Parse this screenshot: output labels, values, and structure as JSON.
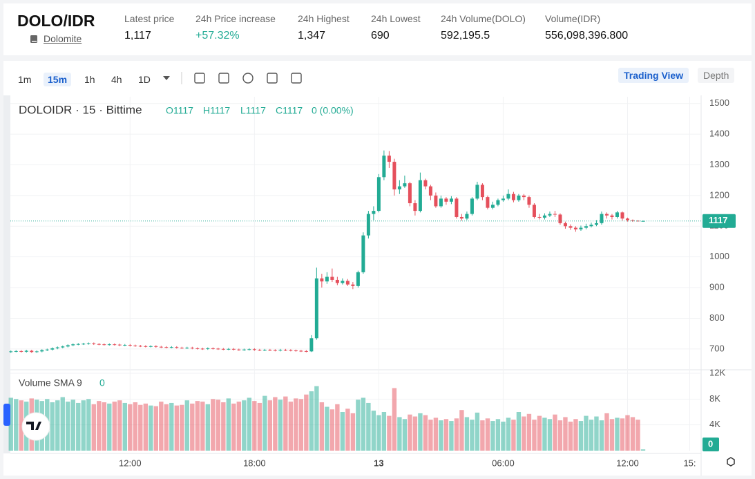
{
  "header": {
    "pair": "DOLO/IDR",
    "name": "Dolomite",
    "stats": [
      {
        "label": "Latest price",
        "value": "1,117"
      },
      {
        "label": "24h Price increase",
        "value": "+57.32%"
      },
      {
        "label": "24h Highest",
        "value": "1,347"
      },
      {
        "label": "24h Lowest",
        "value": "690"
      },
      {
        "label": "24h Volume(DOLO)",
        "value": "592,195.5"
      },
      {
        "label": "Volume(IDR)",
        "value": "556,098,396.800"
      }
    ]
  },
  "toolbar": {
    "intervals": [
      "1m",
      "15m",
      "1h",
      "4h",
      "1D"
    ],
    "active": 1,
    "views": [
      "Trading View",
      "Depth"
    ]
  },
  "chart_data": {
    "type": "candlestick",
    "symbol": "DOLOIDR · 15 · Bittime",
    "ohlc": [
      "O1117",
      "H1117",
      "L1117",
      "C1117",
      "0 (0.00%)"
    ],
    "volume_title": "Volume SMA 9",
    "volume_sma": 0,
    "last_price": 1117,
    "up_color": "#22ab94",
    "down_color": "#e5505c",
    "grid": true,
    "xlim": [
      -0.1,
      133.2
    ],
    "xticks": [
      {
        "value": 23,
        "label": "12:00"
      },
      {
        "value": 47,
        "label": "18:00"
      },
      {
        "value": 71,
        "label": "13"
      },
      {
        "value": 95,
        "label": "06:00"
      },
      {
        "value": 119,
        "label": "12:00"
      },
      {
        "value": 131,
        "label": "15:"
      }
    ],
    "ylim": [
      632,
      1522
    ],
    "yticks": [
      700,
      800,
      900,
      1000,
      1100,
      1200,
      1300,
      1400,
      1500
    ],
    "y2lim": [
      0,
      12000
    ],
    "y2ticks": [
      {
        "value": 4000,
        "label": "4K"
      },
      {
        "value": 8000,
        "label": "8K"
      },
      {
        "value": 12000,
        "label": "12K"
      }
    ],
    "open": [
      690,
      692,
      693,
      691,
      694,
      690,
      692,
      696,
      698,
      702,
      705,
      708,
      712,
      715,
      716,
      717,
      718,
      716,
      715,
      714,
      715,
      714,
      712,
      713,
      711,
      710,
      709,
      708,
      709,
      707,
      706,
      705,
      706,
      704,
      703,
      704,
      702,
      701,
      700,
      702,
      701,
      700,
      699,
      700,
      698,
      697,
      698,
      699,
      697,
      696,
      697,
      696,
      695,
      697,
      696,
      695,
      694,
      693,
      692,
      735,
      930,
      920,
      935,
      925,
      915,
      922,
      910,
      905,
      950,
      1070,
      1140,
      1150,
      1260,
      1330,
      1310,
      1220,
      1230,
      1240,
      1175,
      1150,
      1250,
      1230,
      1200,
      1165,
      1190,
      1180,
      1190,
      1130,
      1125,
      1140,
      1190,
      1235,
      1195,
      1160,
      1170,
      1185,
      1190,
      1205,
      1185,
      1200,
      1195,
      1170,
      1130,
      1128,
      1135,
      1140,
      1138,
      1110,
      1100,
      1095,
      1090,
      1095,
      1100,
      1105,
      1110,
      1140,
      1135,
      1130,
      1145,
      1125,
      1120,
      1118,
      1117
    ],
    "high": [
      695,
      696,
      696,
      697,
      697,
      695,
      699,
      701,
      705,
      708,
      711,
      715,
      718,
      719,
      720,
      721,
      721,
      719,
      718,
      718,
      718,
      717,
      716,
      716,
      714,
      713,
      712,
      712,
      712,
      710,
      709,
      709,
      709,
      707,
      707,
      707,
      705,
      704,
      705,
      705,
      704,
      703,
      703,
      703,
      701,
      701,
      702,
      702,
      700,
      700,
      700,
      699,
      700,
      700,
      699,
      698,
      697,
      696,
      745,
      965,
      945,
      950,
      962,
      935,
      930,
      928,
      918,
      955,
      1080,
      1150,
      1165,
      1270,
      1347,
      1345,
      1320,
      1250,
      1265,
      1245,
      1185,
      1275,
      1255,
      1235,
      1210,
      1200,
      1195,
      1198,
      1195,
      1140,
      1148,
      1195,
      1245,
      1240,
      1200,
      1180,
      1190,
      1200,
      1220,
      1212,
      1205,
      1205,
      1200,
      1175,
      1140,
      1142,
      1148,
      1150,
      1142,
      1115,
      1106,
      1100,
      1102,
      1108,
      1112,
      1120,
      1148,
      1145,
      1140,
      1150,
      1148,
      1128,
      1122,
      1120,
      1119
    ],
    "low": [
      687,
      689,
      688,
      688,
      687,
      687,
      689,
      693,
      695,
      699,
      702,
      705,
      709,
      712,
      713,
      714,
      713,
      712,
      711,
      711,
      711,
      709,
      709,
      708,
      707,
      706,
      705,
      705,
      704,
      703,
      702,
      702,
      701,
      700,
      700,
      699,
      698,
      697,
      697,
      698,
      697,
      696,
      696,
      695,
      694,
      694,
      695,
      694,
      693,
      693,
      693,
      692,
      692,
      693,
      692,
      691,
      690,
      689,
      690,
      730,
      900,
      912,
      918,
      908,
      910,
      905,
      895,
      900,
      945,
      1060,
      1120,
      1145,
      1250,
      1290,
      1200,
      1205,
      1225,
      1165,
      1135,
      1145,
      1220,
      1185,
      1160,
      1160,
      1170,
      1172,
      1125,
      1118,
      1120,
      1135,
      1185,
      1185,
      1155,
      1155,
      1165,
      1180,
      1185,
      1178,
      1180,
      1185,
      1160,
      1125,
      1122,
      1122,
      1130,
      1130,
      1105,
      1092,
      1088,
      1082,
      1085,
      1090,
      1096,
      1100,
      1105,
      1125,
      1122,
      1125,
      1118,
      1115,
      1114,
      1115,
      1116
    ],
    "close": [
      692,
      693,
      691,
      694,
      690,
      692,
      696,
      698,
      702,
      705,
      708,
      712,
      715,
      716,
      717,
      718,
      716,
      715,
      714,
      715,
      714,
      712,
      713,
      711,
      710,
      709,
      708,
      709,
      707,
      706,
      705,
      706,
      704,
      703,
      704,
      702,
      701,
      700,
      702,
      701,
      700,
      699,
      700,
      698,
      697,
      698,
      699,
      697,
      696,
      697,
      696,
      695,
      697,
      696,
      695,
      694,
      693,
      692,
      735,
      930,
      920,
      935,
      925,
      915,
      922,
      910,
      905,
      950,
      1070,
      1140,
      1150,
      1260,
      1330,
      1310,
      1220,
      1230,
      1240,
      1175,
      1150,
      1250,
      1230,
      1200,
      1165,
      1190,
      1180,
      1190,
      1130,
      1125,
      1140,
      1190,
      1235,
      1195,
      1160,
      1170,
      1185,
      1190,
      1205,
      1185,
      1200,
      1195,
      1170,
      1130,
      1128,
      1135,
      1140,
      1138,
      1110,
      1100,
      1095,
      1090,
      1095,
      1100,
      1105,
      1110,
      1140,
      1135,
      1130,
      1145,
      1125,
      1120,
      1118,
      1117,
      1117
    ],
    "volume": [
      8200,
      8000,
      7800,
      7600,
      8100,
      7900,
      7700,
      8000,
      7500,
      7800,
      8300,
      7600,
      7900,
      7400,
      7800,
      8000,
      7200,
      7700,
      7500,
      7300,
      7600,
      7800,
      7400,
      7200,
      7500,
      7100,
      7300,
      7000,
      6900,
      7600,
      7200,
      7400,
      7000,
      7100,
      7800,
      7300,
      7700,
      7600,
      7200,
      8000,
      7900,
      7500,
      8100,
      7300,
      7600,
      7800,
      8200,
      7700,
      7400,
      8500,
      7800,
      8300,
      7900,
      8400,
      7600,
      8100,
      8000,
      8700,
      9200,
      10000,
      7500,
      6800,
      6400,
      7200,
      6000,
      6500,
      5800,
      7900,
      8200,
      7400,
      6200,
      5500,
      6000,
      5400,
      9700,
      5200,
      4900,
      5600,
      5300,
      5800,
      5500,
      4800,
      5100,
      4700,
      4900,
      4600,
      5000,
      6300,
      5200,
      4800,
      5900,
      4700,
      5000,
      4600,
      4900,
      4500,
      5100,
      4800,
      6000,
      5300,
      5700,
      4800,
      5400,
      5100,
      4900,
      5600,
      4700,
      5200,
      4500,
      4900,
      4600,
      5400,
      4800,
      5300,
      4700,
      5800,
      4900,
      5100,
      5000,
      5500,
      5200,
      4800,
      200
    ]
  }
}
